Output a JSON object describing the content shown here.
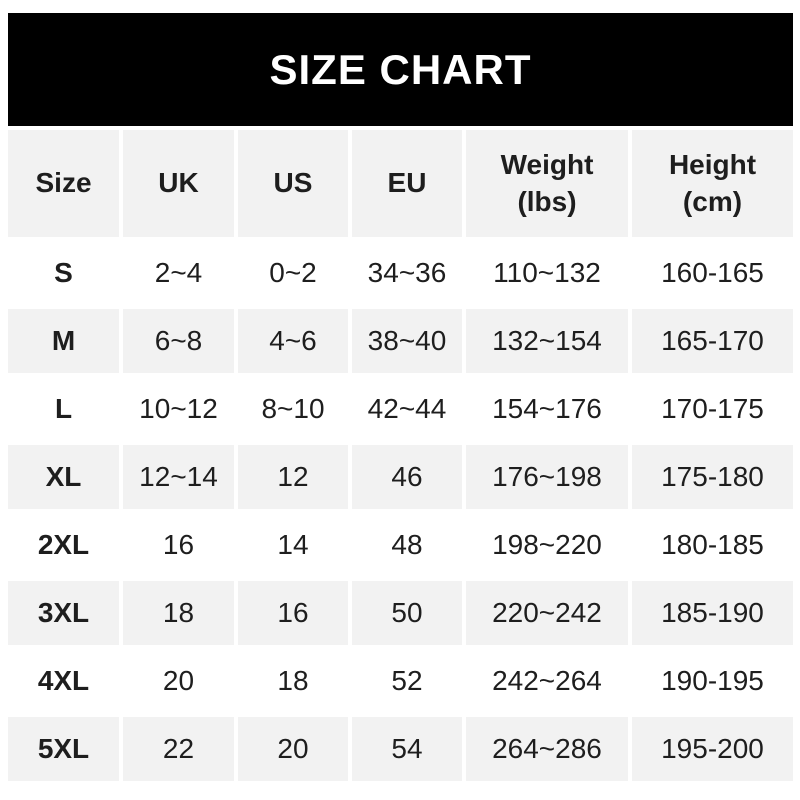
{
  "banner": {
    "title": "SIZE CHART"
  },
  "colors": {
    "banner_bg": "#000000",
    "banner_text": "#ffffff",
    "shaded_cell_bg": "#f2f2f2",
    "row_bg": "#ffffff",
    "text": "#1e1e1e"
  },
  "table": {
    "headers": [
      "Size",
      "UK",
      "US",
      "EU",
      "Weight\n(lbs)",
      "Height\n(cm)"
    ],
    "rows": [
      [
        "S",
        "2~4",
        "0~2",
        "34~36",
        "110~132",
        "160-165"
      ],
      [
        "M",
        "6~8",
        "4~6",
        "38~40",
        "132~154",
        "165-170"
      ],
      [
        "L",
        "10~12",
        "8~10",
        "42~44",
        "154~176",
        "170-175"
      ],
      [
        "XL",
        "12~14",
        "12",
        "46",
        "176~198",
        "175-180"
      ],
      [
        "2XL",
        "16",
        "14",
        "48",
        "198~220",
        "180-185"
      ],
      [
        "3XL",
        "18",
        "16",
        "50",
        "220~242",
        "185-190"
      ],
      [
        "4XL",
        "20",
        "18",
        "52",
        "242~264",
        "190-195"
      ],
      [
        "5XL",
        "22",
        "20",
        "54",
        "264~286",
        "195-200"
      ]
    ]
  },
  "chart_data": {
    "type": "table",
    "title": "SIZE CHART",
    "columns": [
      "Size",
      "UK",
      "US",
      "EU",
      "Weight (lbs)",
      "Height (cm)"
    ],
    "rows": [
      [
        "S",
        "2~4",
        "0~2",
        "34~36",
        "110~132",
        "160-165"
      ],
      [
        "M",
        "6~8",
        "4~6",
        "38~40",
        "132~154",
        "165-170"
      ],
      [
        "L",
        "10~12",
        "8~10",
        "42~44",
        "154~176",
        "170-175"
      ],
      [
        "XL",
        "12~14",
        "12",
        "46",
        "176~198",
        "175-180"
      ],
      [
        "2XL",
        "16",
        "14",
        "48",
        "198~220",
        "180-185"
      ],
      [
        "3XL",
        "18",
        "16",
        "50",
        "220~242",
        "185-190"
      ],
      [
        "4XL",
        "20",
        "18",
        "52",
        "242~264",
        "190-195"
      ],
      [
        "5XL",
        "22",
        "20",
        "54",
        "264~286",
        "195-200"
      ]
    ],
    "layout": {
      "striping": "alternating rows shaded light gray starting with header row",
      "header_shaded": true
    }
  }
}
